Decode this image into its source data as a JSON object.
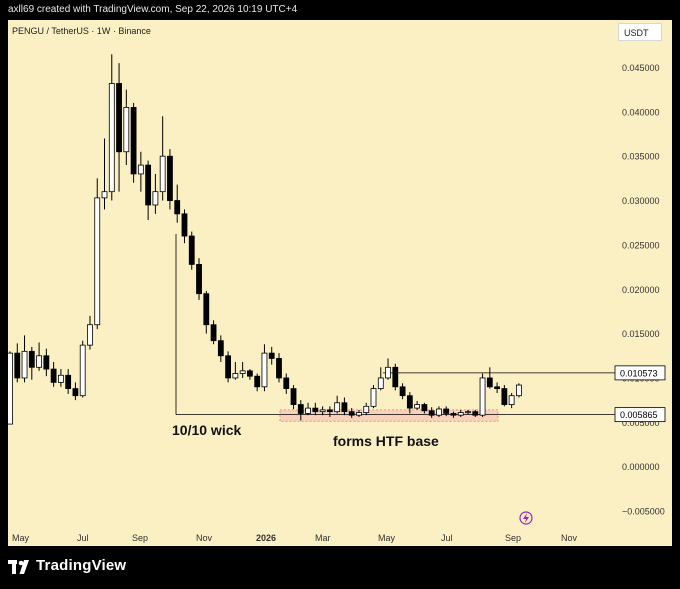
{
  "header": {
    "attribution": "axll69 created with TradingView.com, Sep 22, 2026 10:19 UTC+4"
  },
  "symbol": {
    "title": "PENGU / TetherUS · 1W · Binance",
    "currency": "USDT"
  },
  "footer": {
    "brand": "TradingView"
  },
  "colors": {
    "background": "#fbf0c4",
    "bull_body": "#ffffff",
    "bear_body": "#000000",
    "wick": "#000000",
    "zone_fill": "#f5c8b4",
    "zone_stroke": "#e8968a"
  },
  "chart_data": {
    "type": "candlestick",
    "x_tick_labels": [
      "May",
      "Jul",
      "Sep",
      "Nov",
      "2026",
      "Mar",
      "May",
      "Jul",
      "Sep",
      "Nov"
    ],
    "y_tick_labels": [
      "0.045000",
      "0.040000",
      "0.035000",
      "0.030000",
      "0.025000",
      "0.020000",
      "0.015000",
      "0.010000",
      "0.005000",
      "0.000000",
      "−0.005000"
    ],
    "y_ticks": [
      0.045,
      0.04,
      0.035,
      0.03,
      0.025,
      0.02,
      0.015,
      0.01,
      0.005,
      0.0,
      -0.005
    ],
    "ylim": [
      -0.0075,
      0.05
    ],
    "price_labels": [
      {
        "value": 0.010573,
        "text": "0.010573"
      },
      {
        "value": 0.005865,
        "text": "0.005865"
      }
    ],
    "horizontal_levels": [
      0.010573,
      0.005865
    ],
    "support_zone": [
      0.0051,
      0.0064
    ],
    "annotations": [
      "10/10 wick",
      "forms HTF base"
    ],
    "candles": [
      [
        0.0048,
        0.0128,
        0.013,
        0.0048
      ],
      [
        0.0128,
        0.01,
        0.0139,
        0.0095
      ],
      [
        0.01,
        0.013,
        0.0148,
        0.0095
      ],
      [
        0.013,
        0.0112,
        0.0135,
        0.0098
      ],
      [
        0.0112,
        0.0125,
        0.014,
        0.0108
      ],
      [
        0.0125,
        0.011,
        0.0133,
        0.0102
      ],
      [
        0.011,
        0.0095,
        0.0118,
        0.009
      ],
      [
        0.0095,
        0.0103,
        0.011,
        0.009
      ],
      [
        0.0103,
        0.0088,
        0.011,
        0.0082
      ],
      [
        0.0088,
        0.008,
        0.0095,
        0.0075
      ],
      [
        0.008,
        0.0137,
        0.0142,
        0.0078
      ],
      [
        0.0137,
        0.016,
        0.017,
        0.0132
      ],
      [
        0.016,
        0.0303,
        0.0325,
        0.0155
      ],
      [
        0.0303,
        0.031,
        0.037,
        0.029
      ],
      [
        0.031,
        0.0432,
        0.0465,
        0.03
      ],
      [
        0.0432,
        0.0355,
        0.0455,
        0.031
      ],
      [
        0.0355,
        0.0405,
        0.0425,
        0.034
      ],
      [
        0.0405,
        0.033,
        0.041,
        0.032
      ],
      [
        0.033,
        0.034,
        0.0355,
        0.031
      ],
      [
        0.034,
        0.0295,
        0.0345,
        0.0278
      ],
      [
        0.0295,
        0.031,
        0.033,
        0.0285
      ],
      [
        0.031,
        0.035,
        0.0395,
        0.03
      ],
      [
        0.035,
        0.03,
        0.0358,
        0.029
      ],
      [
        0.03,
        0.0285,
        0.0318,
        0.0275
      ],
      [
        0.0285,
        0.026,
        0.029,
        0.0252
      ],
      [
        0.026,
        0.0228,
        0.0265,
        0.0222
      ],
      [
        0.0228,
        0.0195,
        0.0235,
        0.0188
      ],
      [
        0.0195,
        0.016,
        0.0198,
        0.015
      ],
      [
        0.016,
        0.0142,
        0.0165,
        0.0138
      ],
      [
        0.0142,
        0.0125,
        0.0148,
        0.0118
      ],
      [
        0.0125,
        0.01,
        0.013,
        0.0095
      ],
      [
        0.01,
        0.0105,
        0.0118,
        0.0098
      ],
      [
        0.0105,
        0.0108,
        0.0118,
        0.01
      ],
      [
        0.0108,
        0.0102,
        0.011,
        0.0098
      ],
      [
        0.0102,
        0.009,
        0.0105,
        0.0085
      ],
      [
        0.009,
        0.0128,
        0.0138,
        0.0085
      ],
      [
        0.0128,
        0.0122,
        0.0135,
        0.0115
      ],
      [
        0.0122,
        0.01,
        0.0128,
        0.0095
      ],
      [
        0.01,
        0.0088,
        0.0105,
        0.0082
      ],
      [
        0.0088,
        0.007,
        0.0092,
        0.0065
      ],
      [
        0.007,
        0.006,
        0.0075,
        0.0052
      ],
      [
        0.006,
        0.0066,
        0.0072,
        0.0058
      ],
      [
        0.0066,
        0.0062,
        0.0072,
        0.0058
      ],
      [
        0.0062,
        0.0064,
        0.0068,
        0.0058
      ],
      [
        0.0064,
        0.0062,
        0.0068,
        0.0056
      ],
      [
        0.0062,
        0.0072,
        0.008,
        0.006
      ],
      [
        0.0072,
        0.0062,
        0.0078,
        0.0058
      ],
      [
        0.0062,
        0.0058,
        0.0066,
        0.0055
      ],
      [
        0.0058,
        0.0061,
        0.0064,
        0.0056
      ],
      [
        0.0061,
        0.0068,
        0.0072,
        0.0058
      ],
      [
        0.0068,
        0.0088,
        0.0092,
        0.0066
      ],
      [
        0.0088,
        0.01,
        0.0112,
        0.0086
      ],
      [
        0.01,
        0.0112,
        0.0122,
        0.0098
      ],
      [
        0.0112,
        0.009,
        0.0116,
        0.0086
      ],
      [
        0.009,
        0.008,
        0.0094,
        0.0076
      ],
      [
        0.008,
        0.0066,
        0.0084,
        0.006
      ],
      [
        0.0066,
        0.007,
        0.0074,
        0.0064
      ],
      [
        0.007,
        0.0063,
        0.0072,
        0.006
      ],
      [
        0.0063,
        0.0058,
        0.0067,
        0.0055
      ],
      [
        0.0058,
        0.0065,
        0.0068,
        0.0056
      ],
      [
        0.0065,
        0.006,
        0.0068,
        0.0057
      ],
      [
        0.006,
        0.0058,
        0.0062,
        0.0055
      ],
      [
        0.0058,
        0.0061,
        0.0064,
        0.0056
      ],
      [
        0.0061,
        0.0062,
        0.0064,
        0.0059
      ],
      [
        0.0062,
        0.0058,
        0.0064,
        0.0056
      ],
      [
        0.0058,
        0.01,
        0.0105,
        0.0056
      ],
      [
        0.01,
        0.009,
        0.0112,
        0.0088
      ],
      [
        0.009,
        0.0088,
        0.0095,
        0.0083
      ],
      [
        0.0088,
        0.007,
        0.0092,
        0.0068
      ],
      [
        0.007,
        0.008,
        0.0083,
        0.0066
      ],
      [
        0.008,
        0.0092,
        0.0094,
        0.0078
      ]
    ]
  }
}
